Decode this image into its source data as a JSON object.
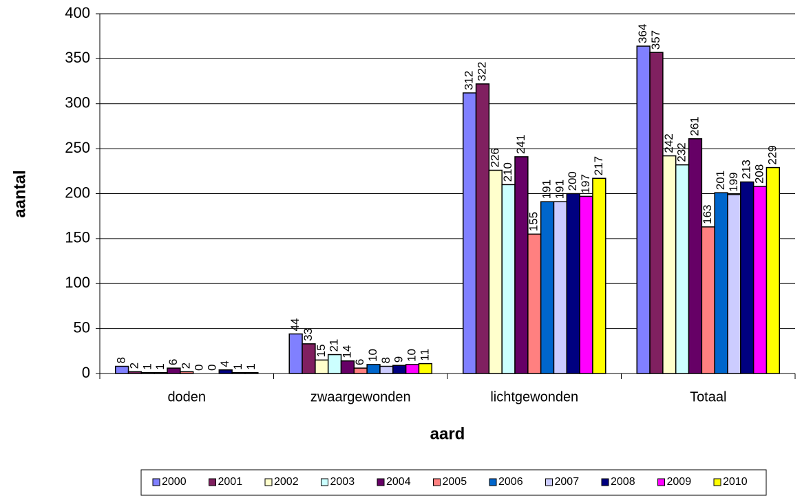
{
  "chart_data": {
    "type": "bar",
    "x_label": "aard",
    "y_label": "aantal",
    "categories": [
      "doden",
      "zwaargewonden",
      "lichtgewonden",
      "Totaal"
    ],
    "series": [
      {
        "name": "2000",
        "color": "#8080ff",
        "values": [
          8,
          44,
          312,
          364
        ]
      },
      {
        "name": "2001",
        "color": "#802060",
        "values": [
          2,
          33,
          322,
          357
        ]
      },
      {
        "name": "2002",
        "color": "#ffffcc",
        "values": [
          1,
          15,
          226,
          242
        ]
      },
      {
        "name": "2003",
        "color": "#ccffff",
        "values": [
          1,
          21,
          210,
          232
        ]
      },
      {
        "name": "2004",
        "color": "#660066",
        "values": [
          6,
          14,
          241,
          261
        ]
      },
      {
        "name": "2005",
        "color": "#ff8080",
        "values": [
          2,
          6,
          155,
          163
        ]
      },
      {
        "name": "2006",
        "color": "#0066cc",
        "values": [
          0,
          10,
          191,
          201
        ]
      },
      {
        "name": "2007",
        "color": "#ccccff",
        "values": [
          0,
          8,
          191,
          199
        ]
      },
      {
        "name": "2008",
        "color": "#000080",
        "values": [
          4,
          9,
          200,
          213
        ]
      },
      {
        "name": "2009",
        "color": "#ff00ff",
        "values": [
          1,
          10,
          197,
          208
        ]
      },
      {
        "name": "2010",
        "color": "#ffff00",
        "values": [
          1,
          11,
          217,
          229
        ]
      }
    ],
    "ylim": [
      0,
      400
    ],
    "yticks": [
      0,
      50,
      100,
      150,
      200,
      250,
      300,
      350,
      400
    ],
    "grid": true,
    "legend": "bottom"
  }
}
